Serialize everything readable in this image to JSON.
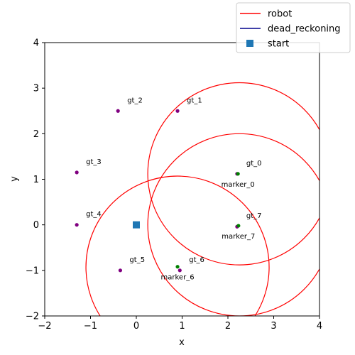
{
  "chart_data": {
    "type": "scatter",
    "xlabel": "x",
    "ylabel": "y",
    "xlim": [
      -2,
      4
    ],
    "ylim": [
      -2,
      4
    ],
    "xticks": [
      -2,
      -1,
      0,
      1,
      2,
      3,
      4
    ],
    "yticks": [
      -2,
      -1,
      0,
      1,
      2,
      3,
      4
    ],
    "grid": false,
    "legend": {
      "placement": "top-right",
      "entries": [
        {
          "label": "robot",
          "kind": "line",
          "color": "#ff0000"
        },
        {
          "label": "dead_reckoning",
          "kind": "line",
          "color": "#00008b"
        },
        {
          "label": "start",
          "kind": "square",
          "color": "#1f77b4"
        }
      ]
    },
    "start": {
      "x": 0.0,
      "y": 0.0
    },
    "ground_truth": [
      {
        "label": "gt_0",
        "x": 2.2,
        "y": 1.12
      },
      {
        "label": "gt_1",
        "x": 0.9,
        "y": 2.5
      },
      {
        "label": "gt_2",
        "x": -0.4,
        "y": 2.5
      },
      {
        "label": "gt_3",
        "x": -1.3,
        "y": 1.15
      },
      {
        "label": "gt_4",
        "x": -1.3,
        "y": 0.0
      },
      {
        "label": "gt_5",
        "x": -0.35,
        "y": -1.0
      },
      {
        "label": "gt_6",
        "x": 0.95,
        "y": -1.0
      },
      {
        "label": "gt_7",
        "x": 2.2,
        "y": -0.04
      }
    ],
    "markers": [
      {
        "label": "marker_0",
        "x": 2.22,
        "y": 1.12
      },
      {
        "label": "marker_6",
        "x": 0.9,
        "y": -0.92
      },
      {
        "label": "marker_7",
        "x": 2.23,
        "y": -0.02
      }
    ],
    "circles": [
      {
        "cx": 2.25,
        "cy": 1.12,
        "r": 2.0
      },
      {
        "cx": 2.25,
        "cy": 0.0,
        "r": 2.0
      },
      {
        "cx": 0.9,
        "cy": -0.93,
        "r": 2.0
      }
    ],
    "colors": {
      "ground_truth": "#800080",
      "marker": "#008000",
      "robot": "#ff0000",
      "start": "#1f77b4"
    }
  }
}
